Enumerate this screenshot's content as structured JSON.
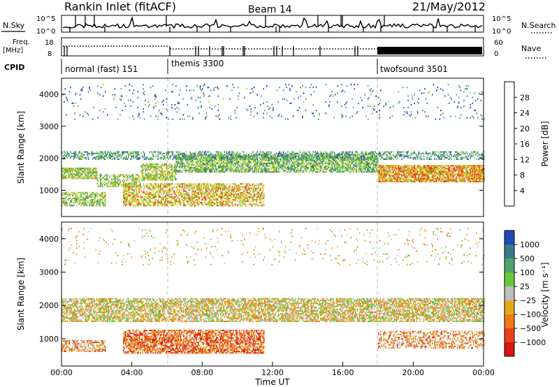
{
  "header": {
    "station": "Rankin Inlet (fitACF)",
    "beam": "Beam 14",
    "date": "21/May/2012"
  },
  "top_panels": {
    "nsky_label": "N.Sky",
    "nsearch_label": "N.Search",
    "noise_ticks": [
      "10^5",
      "10^0"
    ],
    "freq_label": "Freq.",
    "freq_unit": "[MHz]",
    "freq_ticks": [
      "18",
      "8"
    ],
    "nave_label": "Nave",
    "nave_ticks": [
      "60",
      "0"
    ],
    "cpid_label": "CPID",
    "cpid_segments": [
      {
        "label": "normal (fast) 151",
        "start_hour": 0,
        "end_hour": 6
      },
      {
        "label": "themis 3300",
        "start_hour": 6,
        "end_hour": 18
      },
      {
        "label": "twofsound 3501",
        "start_hour": 18,
        "end_hour": 24
      }
    ]
  },
  "chart_data": [
    {
      "type": "heatmap",
      "parameter": "power",
      "xlabel": "",
      "ylabel": "Slant Range [km]",
      "x_range_hours": [
        0,
        24
      ],
      "y_range_km": [
        180,
        4500
      ],
      "y_ticks": [
        1000,
        2000,
        3000,
        4000
      ],
      "colorbar": {
        "label": "Power [dB]",
        "range": [
          0,
          32
        ],
        "ticks": [
          4,
          8,
          12,
          16,
          20,
          24,
          28
        ],
        "colors": [
          "#1a1ae6",
          "#2a4fb0",
          "#3c7f76",
          "#4aa66a",
          "#86cf3d",
          "#d8d023",
          "#f08a1c",
          "#e4381b"
        ]
      },
      "bands": [
        {
          "start": 0.0,
          "end": 2.0,
          "y_min": 1350,
          "y_max": 1700,
          "level": 0.6,
          "density": 0.75
        },
        {
          "start": 2.0,
          "end": 4.5,
          "y_min": 1100,
          "y_max": 1500,
          "level": 0.55,
          "density": 0.55
        },
        {
          "start": 4.5,
          "end": 6.5,
          "y_min": 1300,
          "y_max": 1800,
          "level": 0.6,
          "density": 0.65
        },
        {
          "start": 6.5,
          "end": 18.0,
          "y_min": 1550,
          "y_max": 2100,
          "level": 0.5,
          "density": 0.7
        },
        {
          "start": 18.0,
          "end": 24.0,
          "y_min": 1250,
          "y_max": 1750,
          "level": 0.78,
          "density": 0.85
        },
        {
          "start": 0.0,
          "end": 24.0,
          "y_min": 1950,
          "y_max": 2200,
          "level": 0.4,
          "density": 0.45
        },
        {
          "start": 0.0,
          "end": 2.5,
          "y_min": 500,
          "y_max": 950,
          "level": 0.55,
          "density": 0.6
        },
        {
          "start": 3.5,
          "end": 11.5,
          "y_min": 500,
          "y_max": 1200,
          "level": 0.72,
          "density": 0.6
        },
        {
          "start": 0.0,
          "end": 24.0,
          "y_min": 3200,
          "y_max": 4300,
          "level": 0.3,
          "density": 0.05
        }
      ]
    },
    {
      "type": "heatmap",
      "parameter": "velocity",
      "xlabel": "Time UT",
      "ylabel": "Slant Range [km]",
      "x_range_hours": [
        0,
        24
      ],
      "x_ticks": [
        "00:00",
        "04:00",
        "08:00",
        "12:00",
        "16:00",
        "20:00",
        "00:00"
      ],
      "y_range_km": [
        180,
        4500
      ],
      "y_ticks": [
        1000,
        2000,
        3000,
        4000
      ],
      "colorbar": {
        "label": "Velocity [m s⁻¹]",
        "ticks": [
          "1000",
          "500",
          "100",
          "25",
          "−25",
          "−100",
          "−500",
          "−1000"
        ],
        "colors": [
          "#1f49b8",
          "#3a7a8a",
          "#4aa56a",
          "#66cc33",
          "#bdbdbd",
          "#e8a81a",
          "#f07a14",
          "#e8421a",
          "#d81414"
        ]
      },
      "bands": [
        {
          "start": 0.0,
          "end": 24.0,
          "y_min": 1500,
          "y_max": 2200,
          "level": 0.45,
          "density": 0.7
        },
        {
          "start": 0.0,
          "end": 2.5,
          "y_min": 600,
          "y_max": 950,
          "level": 0.35,
          "density": 0.6
        },
        {
          "start": 3.5,
          "end": 11.5,
          "y_min": 550,
          "y_max": 1250,
          "level": 0.22,
          "density": 0.7
        },
        {
          "start": 18.0,
          "end": 24.0,
          "y_min": 700,
          "y_max": 1200,
          "level": 0.32,
          "density": 0.45
        },
        {
          "start": 0.0,
          "end": 24.0,
          "y_min": 3200,
          "y_max": 4300,
          "level": 0.45,
          "density": 0.04
        }
      ]
    }
  ]
}
